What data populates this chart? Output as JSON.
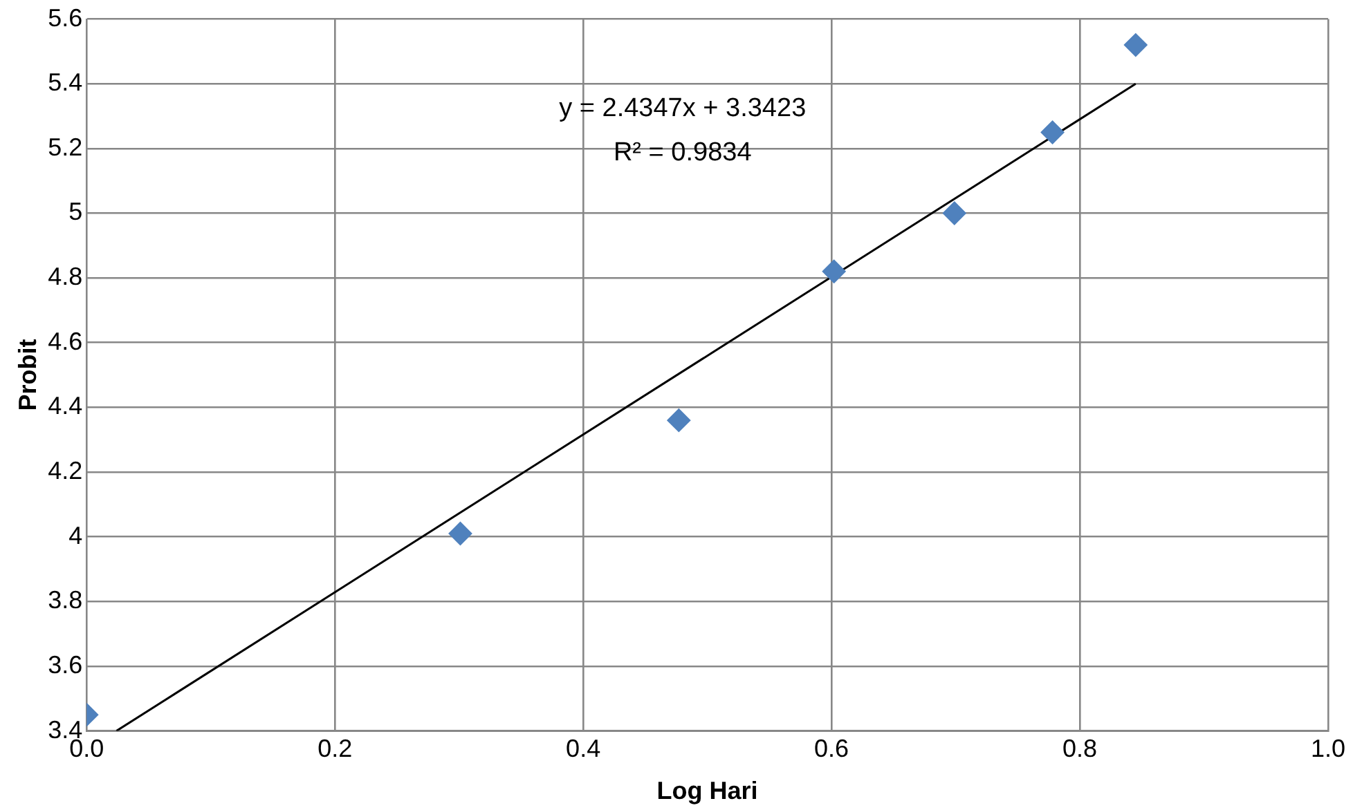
{
  "chart_data": {
    "type": "scatter",
    "xlabel": "Log Hari",
    "ylabel": "Probit",
    "xlim": [
      0,
      1
    ],
    "ylim": [
      3.4,
      5.6
    ],
    "xticks": [
      {
        "value": 0,
        "label": "0.0"
      },
      0.2,
      0.4,
      0.6,
      0.8,
      {
        "value": 1,
        "label": "1.0"
      }
    ],
    "yticks": [
      3.4,
      3.6,
      3.8,
      4,
      4.2,
      4.4,
      4.6,
      4.8,
      5,
      5.2,
      5.4,
      5.6
    ],
    "grid": true,
    "legend": false,
    "series": [
      {
        "color": "#4f81bd",
        "marker": "diamond",
        "x": [
          0,
          0.301,
          0.477,
          0.602,
          0.699,
          0.778,
          0.845
        ],
        "values": [
          3.45,
          4.01,
          4.36,
          4.82,
          5.0,
          5.25,
          5.52
        ]
      },
      {
        "type": "line",
        "color": "#000000",
        "marker": "none",
        "line_style": "solid",
        "x": [
          0.024,
          0.845
        ],
        "values": [
          3.4,
          5.4
        ]
      }
    ],
    "annotations": [
      "y = 2.4347x + 3.3423",
      "R² = 0.9834"
    ]
  }
}
